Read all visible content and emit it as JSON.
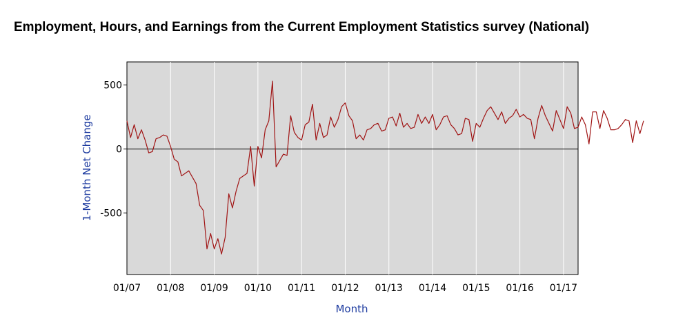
{
  "title": "Employment, Hours, and Earnings from the Current Employment Statistics survey (National)",
  "chart_data": {
    "type": "line",
    "title": "Employment, Hours, and Earnings from the Current Employment Statistics survey (National)",
    "xlabel": "Month",
    "ylabel": "1-Month Net Change",
    "ylim": [
      -980,
      680
    ],
    "xlim": [
      "2007-01",
      "2017-05"
    ],
    "x_ticks": [
      "01/07",
      "01/08",
      "01/09",
      "01/10",
      "01/11",
      "01/12",
      "01/13",
      "01/14",
      "01/15",
      "01/16",
      "01/17"
    ],
    "y_ticks": [
      500,
      0,
      -500
    ],
    "y_tick_labels": [
      "500",
      "0",
      "-500"
    ],
    "grid": true,
    "zero_line": true,
    "colors": {
      "line": "#a01414",
      "plot_bg": "#d9d9d9",
      "grid": "#ffffff",
      "axis_title": "#1e3ca0"
    },
    "series": [
      {
        "x_start": "2007-01",
        "values": [
          220,
          90,
          190,
          80,
          150,
          70,
          -30,
          -20,
          80,
          90,
          110,
          100,
          20,
          -80,
          -100,
          -210,
          -190,
          -170,
          -220,
          -270,
          -440,
          -480,
          -780,
          -660,
          -780,
          -700,
          -820,
          -690,
          -350,
          -460,
          -330,
          -230,
          -210,
          -190,
          20,
          -290,
          20,
          -70,
          150,
          220,
          530,
          -140,
          -90,
          -40,
          -50,
          260,
          130,
          90,
          70,
          190,
          210,
          350,
          70,
          200,
          90,
          110,
          250,
          170,
          230,
          330,
          360,
          260,
          220,
          80,
          110,
          70,
          150,
          160,
          190,
          200,
          140,
          150,
          240,
          250,
          180,
          280,
          170,
          200,
          160,
          170,
          270,
          200,
          250,
          200,
          270,
          150,
          190,
          250,
          260,
          190,
          160,
          110,
          120,
          240,
          230,
          60,
          200,
          170,
          240,
          300,
          330,
          280,
          230,
          290,
          200,
          240,
          260,
          310,
          250,
          270,
          240,
          230,
          80,
          240,
          340,
          260,
          200,
          140,
          300,
          230,
          160,
          330,
          280,
          160,
          170,
          250,
          190,
          40,
          290,
          290,
          160,
          300,
          240,
          150,
          150,
          160,
          190,
          230,
          220,
          50,
          220,
          120,
          220
        ]
      }
    ]
  }
}
